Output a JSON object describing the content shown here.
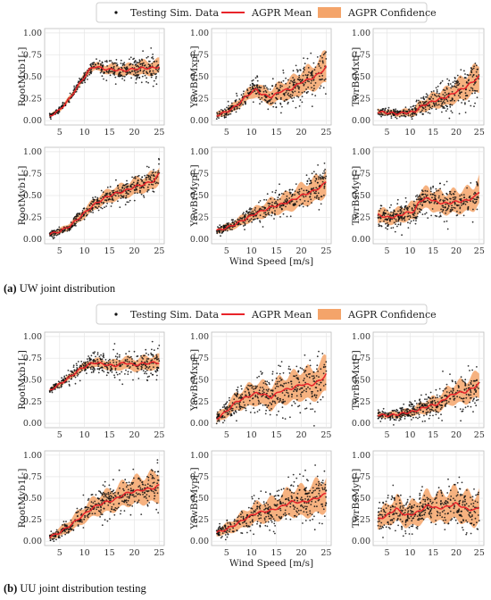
{
  "legend": {
    "scatter_label": "Testing Sim. Data",
    "mean_label": "AGPR Mean",
    "band_label": "AGPR Confidence"
  },
  "colors": {
    "scatter": "#111111",
    "mean": "#e8242a",
    "band": "#f4a46a",
    "grid": "#e6e6e6"
  },
  "captions": [
    {
      "tag": "(a)",
      "text": "UW joint distribution"
    },
    {
      "tag": "(b)",
      "text": "UU joint distribution testing"
    }
  ],
  "chart_data": [
    {
      "group": "a",
      "type": "scatter",
      "ylabel": "RootMxb1[-]",
      "xlabel": "",
      "xlim": [
        2,
        26
      ],
      "ylim": [
        0,
        1.0
      ],
      "yticks": [
        "0.00",
        "0.25",
        "0.50",
        "0.75",
        "1.00"
      ],
      "xticks": [
        "5",
        "10",
        "15",
        "20",
        "25"
      ],
      "mean": {
        "x": [
          3,
          5,
          7,
          9,
          11,
          12,
          14,
          16,
          18,
          20,
          22,
          24,
          25
        ],
        "y": [
          0.05,
          0.12,
          0.25,
          0.42,
          0.58,
          0.62,
          0.59,
          0.58,
          0.57,
          0.59,
          0.6,
          0.6,
          0.62
        ]
      },
      "band_halfwidth": [
        0.02,
        0.02,
        0.03,
        0.03,
        0.04,
        0.04,
        0.05,
        0.06,
        0.06,
        0.07,
        0.08,
        0.08,
        0.08
      ],
      "scatter_spread": [
        0.02,
        0.03,
        0.04,
        0.05,
        0.06,
        0.07,
        0.09,
        0.1,
        0.11,
        0.12,
        0.13,
        0.15,
        0.16
      ]
    },
    {
      "group": "a",
      "type": "scatter",
      "ylabel": "YawBrMxp[-]",
      "xlabel": "",
      "xlim": [
        2,
        26
      ],
      "ylim": [
        0,
        1.0
      ],
      "yticks": [
        "0.00",
        "0.25",
        "0.50",
        "0.75",
        "1.00"
      ],
      "xticks": [
        "5",
        "10",
        "15",
        "20",
        "25"
      ],
      "mean": {
        "x": [
          3,
          5,
          7,
          9,
          11,
          12,
          14,
          16,
          18,
          20,
          22,
          24,
          25
        ],
        "y": [
          0.06,
          0.1,
          0.17,
          0.28,
          0.36,
          0.3,
          0.27,
          0.34,
          0.36,
          0.44,
          0.48,
          0.55,
          0.62
        ]
      },
      "band_halfwidth": [
        0.03,
        0.04,
        0.05,
        0.06,
        0.08,
        0.08,
        0.09,
        0.1,
        0.12,
        0.13,
        0.14,
        0.16,
        0.18
      ],
      "scatter_spread": [
        0.04,
        0.06,
        0.08,
        0.1,
        0.12,
        0.13,
        0.14,
        0.16,
        0.18,
        0.2,
        0.22,
        0.25,
        0.27
      ]
    },
    {
      "group": "a",
      "type": "scatter",
      "ylabel": "TwrBsMxt[-]",
      "xlabel": "",
      "xlim": [
        2,
        26
      ],
      "ylim": [
        0,
        1.0
      ],
      "yticks": [
        "0.00",
        "0.25",
        "0.50",
        "0.75",
        "1.00"
      ],
      "xticks": [
        "5",
        "10",
        "15",
        "20",
        "25"
      ],
      "mean": {
        "x": [
          3,
          5,
          7,
          9,
          11,
          12,
          14,
          16,
          18,
          20,
          22,
          24,
          25
        ],
        "y": [
          0.1,
          0.09,
          0.08,
          0.09,
          0.1,
          0.15,
          0.2,
          0.24,
          0.27,
          0.33,
          0.38,
          0.46,
          0.5
        ]
      },
      "band_halfwidth": [
        0.03,
        0.03,
        0.03,
        0.04,
        0.05,
        0.06,
        0.08,
        0.09,
        0.1,
        0.12,
        0.13,
        0.15,
        0.16
      ],
      "scatter_spread": [
        0.05,
        0.05,
        0.05,
        0.06,
        0.08,
        0.1,
        0.12,
        0.14,
        0.16,
        0.18,
        0.2,
        0.24,
        0.26
      ]
    },
    {
      "group": "a",
      "type": "scatter",
      "ylabel": "RootMyb1[-]",
      "xlabel": "",
      "xlim": [
        2,
        26
      ],
      "ylim": [
        0,
        1.0
      ],
      "yticks": [
        "0.00",
        "0.25",
        "0.50",
        "0.75",
        "1.00"
      ],
      "xticks": [
        "5",
        "10",
        "15",
        "20",
        "25"
      ],
      "mean": {
        "x": [
          3,
          5,
          7,
          9,
          11,
          12,
          14,
          16,
          18,
          20,
          22,
          24,
          25
        ],
        "y": [
          0.06,
          0.09,
          0.15,
          0.25,
          0.35,
          0.4,
          0.47,
          0.52,
          0.55,
          0.6,
          0.63,
          0.67,
          0.75
        ]
      },
      "band_halfwidth": [
        0.02,
        0.03,
        0.04,
        0.05,
        0.06,
        0.06,
        0.07,
        0.08,
        0.08,
        0.09,
        0.09,
        0.1,
        0.1
      ],
      "scatter_spread": [
        0.03,
        0.04,
        0.05,
        0.06,
        0.07,
        0.08,
        0.09,
        0.1,
        0.11,
        0.12,
        0.13,
        0.14,
        0.15
      ]
    },
    {
      "group": "a",
      "type": "scatter",
      "ylabel": "YawBrMyp[-]",
      "xlabel": "Wind Speed [m/s]",
      "xlim": [
        2,
        26
      ],
      "ylim": [
        0,
        1.0
      ],
      "yticks": [
        "0.00",
        "0.25",
        "0.50",
        "0.75",
        "1.00"
      ],
      "xticks": [
        "5",
        "10",
        "15",
        "20",
        "25"
      ],
      "mean": {
        "x": [
          3,
          5,
          7,
          9,
          11,
          12,
          14,
          16,
          18,
          20,
          22,
          24,
          25
        ],
        "y": [
          0.1,
          0.13,
          0.18,
          0.24,
          0.3,
          0.32,
          0.37,
          0.4,
          0.44,
          0.5,
          0.54,
          0.6,
          0.66
        ]
      },
      "band_halfwidth": [
        0.03,
        0.04,
        0.05,
        0.06,
        0.07,
        0.08,
        0.09,
        0.1,
        0.11,
        0.12,
        0.13,
        0.14,
        0.15
      ],
      "scatter_spread": [
        0.05,
        0.06,
        0.07,
        0.09,
        0.1,
        0.11,
        0.12,
        0.14,
        0.15,
        0.17,
        0.18,
        0.2,
        0.22
      ]
    },
    {
      "group": "a",
      "type": "scatter",
      "ylabel": "TwrBsMyt[-]",
      "xlabel": "",
      "xlim": [
        2,
        26
      ],
      "ylim": [
        0,
        1.0
      ],
      "yticks": [
        "0.00",
        "0.25",
        "0.50",
        "0.75",
        "1.00"
      ],
      "xticks": [
        "5",
        "10",
        "15",
        "20",
        "25"
      ],
      "mean": {
        "x": [
          3,
          5,
          7,
          9,
          11,
          12,
          14,
          16,
          18,
          20,
          22,
          24,
          25
        ],
        "y": [
          0.28,
          0.25,
          0.26,
          0.3,
          0.32,
          0.44,
          0.47,
          0.42,
          0.41,
          0.43,
          0.44,
          0.48,
          0.55
        ]
      },
      "band_halfwidth": [
        0.08,
        0.08,
        0.08,
        0.09,
        0.1,
        0.11,
        0.12,
        0.12,
        0.12,
        0.13,
        0.13,
        0.14,
        0.15
      ],
      "scatter_spread": [
        0.12,
        0.12,
        0.12,
        0.13,
        0.14,
        0.15,
        0.16,
        0.16,
        0.16,
        0.17,
        0.18,
        0.19,
        0.2
      ]
    },
    {
      "group": "b",
      "type": "scatter",
      "ylabel": "RootMxb1[-]",
      "xlabel": "",
      "xlim": [
        2,
        26
      ],
      "ylim": [
        0,
        1.0
      ],
      "yticks": [
        "0.00",
        "0.25",
        "0.50",
        "0.75",
        "1.00"
      ],
      "xticks": [
        "5",
        "10",
        "15",
        "20",
        "25"
      ],
      "mean": {
        "x": [
          3,
          5,
          7,
          9,
          11,
          12,
          14,
          16,
          18,
          20,
          22,
          24,
          25
        ],
        "y": [
          0.38,
          0.45,
          0.53,
          0.62,
          0.68,
          0.7,
          0.68,
          0.66,
          0.7,
          0.67,
          0.69,
          0.7,
          0.7
        ]
      },
      "band_halfwidth": [
        0.02,
        0.03,
        0.03,
        0.04,
        0.04,
        0.05,
        0.05,
        0.06,
        0.07,
        0.07,
        0.08,
        0.08,
        0.08
      ],
      "scatter_spread": [
        0.03,
        0.05,
        0.07,
        0.09,
        0.1,
        0.11,
        0.12,
        0.13,
        0.15,
        0.15,
        0.16,
        0.17,
        0.17
      ]
    },
    {
      "group": "b",
      "type": "scatter",
      "ylabel": "YawBrMxp[-]",
      "xlabel": "",
      "xlim": [
        2,
        26
      ],
      "ylim": [
        0,
        1.0
      ],
      "yticks": [
        "0.00",
        "0.25",
        "0.50",
        "0.75",
        "1.00"
      ],
      "xticks": [
        "5",
        "10",
        "15",
        "20",
        "25"
      ],
      "mean": {
        "x": [
          3,
          5,
          7,
          9,
          11,
          12,
          14,
          16,
          18,
          20,
          22,
          24,
          25
        ],
        "y": [
          0.05,
          0.14,
          0.25,
          0.3,
          0.35,
          0.34,
          0.3,
          0.38,
          0.4,
          0.45,
          0.44,
          0.5,
          0.57
        ]
      },
      "band_halfwidth": [
        0.05,
        0.07,
        0.1,
        0.12,
        0.13,
        0.13,
        0.14,
        0.15,
        0.16,
        0.17,
        0.18,
        0.19,
        0.2
      ],
      "scatter_spread": [
        0.08,
        0.12,
        0.16,
        0.18,
        0.2,
        0.2,
        0.22,
        0.24,
        0.26,
        0.27,
        0.28,
        0.3,
        0.3
      ]
    },
    {
      "group": "b",
      "type": "scatter",
      "ylabel": "TwrBsMxt[-]",
      "xlabel": "",
      "xlim": [
        2,
        26
      ],
      "ylim": [
        0,
        1.0
      ],
      "yticks": [
        "0.00",
        "0.25",
        "0.50",
        "0.75",
        "1.00"
      ],
      "xticks": [
        "5",
        "10",
        "15",
        "20",
        "25"
      ],
      "mean": {
        "x": [
          3,
          5,
          7,
          9,
          11,
          12,
          14,
          16,
          18,
          20,
          22,
          24,
          25
        ],
        "y": [
          0.1,
          0.09,
          0.1,
          0.12,
          0.14,
          0.16,
          0.2,
          0.22,
          0.3,
          0.35,
          0.36,
          0.42,
          0.46
        ]
      },
      "band_halfwidth": [
        0.03,
        0.03,
        0.04,
        0.04,
        0.05,
        0.06,
        0.08,
        0.09,
        0.1,
        0.12,
        0.13,
        0.14,
        0.15
      ],
      "scatter_spread": [
        0.06,
        0.06,
        0.07,
        0.08,
        0.1,
        0.11,
        0.13,
        0.15,
        0.17,
        0.19,
        0.2,
        0.22,
        0.24
      ]
    },
    {
      "group": "b",
      "type": "scatter",
      "ylabel": "RootMyb1[-]",
      "xlabel": "",
      "xlim": [
        2,
        26
      ],
      "ylim": [
        0,
        1.0
      ],
      "yticks": [
        "0.00",
        "0.25",
        "0.50",
        "0.75",
        "1.00"
      ],
      "xticks": [
        "5",
        "10",
        "15",
        "20",
        "25"
      ],
      "mean": {
        "x": [
          3,
          5,
          7,
          9,
          11,
          12,
          14,
          16,
          18,
          20,
          22,
          24,
          25
        ],
        "y": [
          0.05,
          0.1,
          0.18,
          0.27,
          0.36,
          0.4,
          0.45,
          0.48,
          0.55,
          0.58,
          0.6,
          0.62,
          0.65
        ]
      },
      "band_halfwidth": [
        0.03,
        0.05,
        0.07,
        0.09,
        0.1,
        0.11,
        0.12,
        0.13,
        0.14,
        0.15,
        0.16,
        0.17,
        0.18
      ],
      "scatter_spread": [
        0.05,
        0.08,
        0.1,
        0.12,
        0.14,
        0.15,
        0.17,
        0.18,
        0.2,
        0.21,
        0.22,
        0.24,
        0.25
      ]
    },
    {
      "group": "b",
      "type": "scatter",
      "ylabel": "YawBrMyp[-]",
      "xlabel": "Wind Speed [m/s]",
      "xlim": [
        2,
        26
      ],
      "ylim": [
        0,
        1.0
      ],
      "yticks": [
        "0.00",
        "0.25",
        "0.50",
        "0.75",
        "1.00"
      ],
      "xticks": [
        "5",
        "10",
        "15",
        "20",
        "25"
      ],
      "mean": {
        "x": [
          3,
          5,
          7,
          9,
          11,
          12,
          14,
          16,
          18,
          20,
          22,
          24,
          25
        ],
        "y": [
          0.1,
          0.14,
          0.2,
          0.27,
          0.33,
          0.34,
          0.36,
          0.4,
          0.46,
          0.45,
          0.48,
          0.52,
          0.56
        ]
      },
      "band_halfwidth": [
        0.04,
        0.06,
        0.08,
        0.1,
        0.11,
        0.12,
        0.13,
        0.14,
        0.16,
        0.17,
        0.18,
        0.19,
        0.2
      ],
      "scatter_spread": [
        0.06,
        0.09,
        0.12,
        0.14,
        0.16,
        0.17,
        0.18,
        0.2,
        0.22,
        0.23,
        0.25,
        0.27,
        0.28
      ]
    },
    {
      "group": "b",
      "type": "scatter",
      "ylabel": "TwrBsMyt[-]",
      "xlabel": "",
      "xlim": [
        2,
        26
      ],
      "ylim": [
        0,
        1.0
      ],
      "yticks": [
        "0.00",
        "0.25",
        "0.50",
        "0.75",
        "1.00"
      ],
      "xticks": [
        "5",
        "10",
        "15",
        "20",
        "25"
      ],
      "mean": {
        "x": [
          3,
          5,
          7,
          9,
          11,
          12,
          14,
          16,
          18,
          20,
          22,
          24,
          25
        ],
        "y": [
          0.25,
          0.3,
          0.38,
          0.3,
          0.32,
          0.35,
          0.42,
          0.38,
          0.4,
          0.44,
          0.38,
          0.36,
          0.4
        ]
      },
      "band_halfwidth": [
        0.1,
        0.12,
        0.14,
        0.13,
        0.14,
        0.15,
        0.16,
        0.16,
        0.17,
        0.18,
        0.18,
        0.18,
        0.18
      ],
      "scatter_spread": [
        0.15,
        0.18,
        0.2,
        0.19,
        0.2,
        0.21,
        0.22,
        0.22,
        0.23,
        0.24,
        0.24,
        0.25,
        0.25
      ]
    }
  ]
}
